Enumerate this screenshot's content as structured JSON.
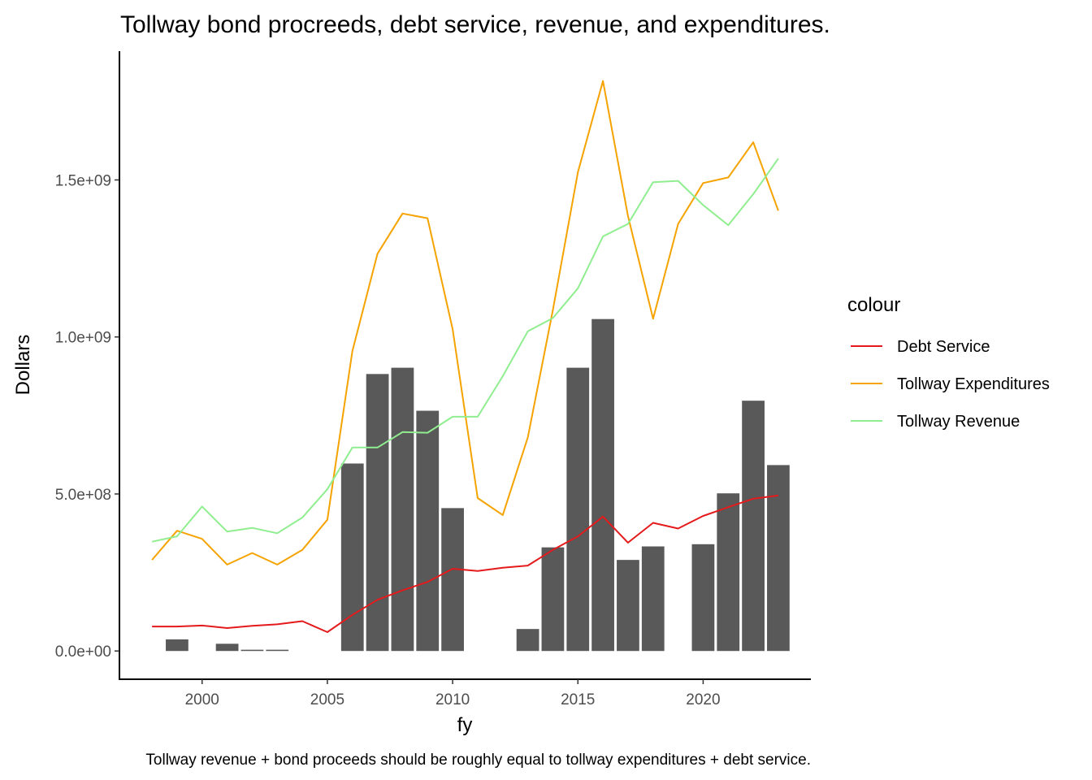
{
  "title": "Tollway bond procreeds, debt service, revenue, and expenditures.",
  "caption": "Tollway revenue + bond proceeds should be roughly equal to tollway expenditures + debt service.",
  "chart_data": {
    "type": "bar",
    "title": "Tollway bond procreeds, debt service, revenue, and expenditures.",
    "xlabel": "fy",
    "ylabel": "Dollars",
    "xlim": [
      1996.7,
      2024.3
    ],
    "ylim": [
      -90000000,
      1910000000
    ],
    "x_ticks": [
      2000,
      2005,
      2010,
      2015,
      2020
    ],
    "x_tick_labels": [
      "2000",
      "2005",
      "2010",
      "2015",
      "2020"
    ],
    "y_ticks": [
      0,
      500000000,
      1000000000,
      1500000000
    ],
    "y_tick_labels": [
      "0.0e+00",
      "5.0e+08",
      "1.0e+09",
      "1.5e+09"
    ],
    "grid": false,
    "legend": {
      "title": "colour",
      "position": "right"
    },
    "bars": {
      "color": "#595959",
      "x": [
        1999,
        2001,
        2002,
        2003,
        2006,
        2007,
        2008,
        2009,
        2010,
        2013,
        2014,
        2015,
        2016,
        2017,
        2018,
        2020,
        2021,
        2022,
        2023
      ],
      "values": [
        37000000,
        23000000,
        4000000,
        4000000,
        597000000,
        882000000,
        902000000,
        765000000,
        455000000,
        70000000,
        330000000,
        902000000,
        1057000000,
        290000000,
        333000000,
        340000000,
        502000000,
        797000000,
        592000000
      ]
    },
    "series": [
      {
        "name": "Debt Service",
        "color": "#e41a1c",
        "x": [
          1998,
          1999,
          2000,
          2001,
          2002,
          2003,
          2004,
          2005,
          2006,
          2007,
          2008,
          2009,
          2010,
          2011,
          2012,
          2013,
          2014,
          2015,
          2016,
          2017,
          2018,
          2019,
          2020,
          2021,
          2022,
          2023
        ],
        "values": [
          78000000,
          78000000,
          81000000,
          73000000,
          80000000,
          85000000,
          95000000,
          60000000,
          115000000,
          163000000,
          193000000,
          220000000,
          262000000,
          255000000,
          265000000,
          272000000,
          322000000,
          365000000,
          428000000,
          345000000,
          408000000,
          390000000,
          430000000,
          458000000,
          485000000,
          495000000
        ]
      },
      {
        "name": "Tollway Expenditures",
        "color": "#f5a300",
        "x": [
          1998,
          1999,
          2000,
          2001,
          2002,
          2003,
          2004,
          2005,
          2006,
          2007,
          2008,
          2009,
          2010,
          2011,
          2012,
          2013,
          2014,
          2015,
          2016,
          2017,
          2018,
          2019,
          2020,
          2021,
          2022,
          2023
        ],
        "values": [
          290000000,
          383000000,
          357000000,
          275000000,
          312000000,
          275000000,
          322000000,
          418000000,
          955000000,
          1265000000,
          1393000000,
          1378000000,
          1025000000,
          487000000,
          433000000,
          680000000,
          1085000000,
          1525000000,
          1815000000,
          1385000000,
          1058000000,
          1360000000,
          1490000000,
          1508000000,
          1620000000,
          1402000000
        ]
      },
      {
        "name": "Tollway Revenue",
        "color": "#90ee90",
        "x": [
          1998,
          1999,
          2000,
          2001,
          2002,
          2003,
          2004,
          2005,
          2006,
          2007,
          2008,
          2009,
          2010,
          2011,
          2012,
          2013,
          2014,
          2015,
          2016,
          2017,
          2018,
          2019,
          2020,
          2021,
          2022,
          2023
        ],
        "values": [
          348000000,
          365000000,
          460000000,
          380000000,
          392000000,
          375000000,
          425000000,
          515000000,
          648000000,
          648000000,
          697000000,
          695000000,
          746000000,
          746000000,
          875000000,
          1018000000,
          1060000000,
          1155000000,
          1320000000,
          1360000000,
          1493000000,
          1497000000,
          1420000000,
          1356000000,
          1455000000,
          1568000000
        ]
      }
    ]
  }
}
